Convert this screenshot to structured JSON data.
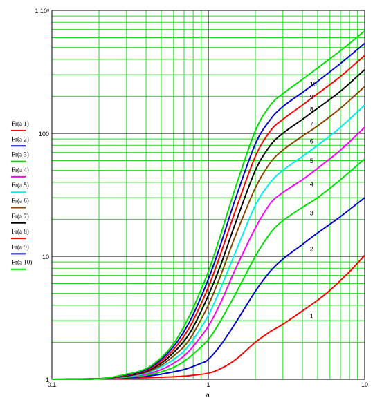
{
  "chart_data": {
    "type": "line",
    "title": "",
    "xlabel": "a",
    "ylabel": "",
    "xscale": "log",
    "yscale": "log",
    "xlim": [
      0.1,
      10
    ],
    "ylim": [
      1,
      1000
    ],
    "grid": true,
    "legend_placement": "left",
    "x_ticks": [
      {
        "value": 0.1,
        "label": "0.1"
      },
      {
        "value": 1,
        "label": "1"
      },
      {
        "value": 10,
        "label": "10"
      }
    ],
    "y_ticks": [
      {
        "value": 1,
        "label": "1"
      },
      {
        "value": 10,
        "label": "10"
      },
      {
        "value": 100,
        "label": "100"
      },
      {
        "value": 1000,
        "label": "1 10³"
      }
    ],
    "grid_colors": {
      "minor": "#22dd22",
      "major": "#000000"
    },
    "series": [
      {
        "name": "Fr(a  1)",
        "label": "1",
        "color": "#ff0000",
        "x": [
          0.1,
          0.2,
          0.3,
          0.5,
          0.7,
          0.8,
          1.0,
          1.2,
          1.5,
          2.0,
          2.5,
          3.0,
          4.0,
          5.0,
          6.0,
          8.0,
          10.0
        ],
        "y": [
          1.0,
          1.01,
          1.02,
          1.04,
          1.06,
          1.08,
          1.12,
          1.22,
          1.45,
          2.0,
          2.45,
          2.8,
          3.6,
          4.4,
          5.3,
          7.5,
          10.2
        ]
      },
      {
        "name": "Fr(a  2)",
        "label": "2",
        "color": "#0000cc",
        "x": [
          0.1,
          0.2,
          0.3,
          0.4,
          0.5,
          0.7,
          0.9,
          1.0,
          1.2,
          1.5,
          2.0,
          2.5,
          3.0,
          4.0,
          5.0,
          7.0,
          10.0
        ],
        "y": [
          1.0,
          1.01,
          1.03,
          1.06,
          1.1,
          1.2,
          1.35,
          1.45,
          1.9,
          2.9,
          5.2,
          7.6,
          9.5,
          12.5,
          15.5,
          21.0,
          30.0
        ]
      },
      {
        "name": "Fr(a  3)",
        "label": "3",
        "color": "#00dd00",
        "x": [
          0.1,
          0.2,
          0.3,
          0.4,
          0.5,
          0.6,
          0.7,
          0.8,
          1.0,
          1.2,
          1.5,
          2.0,
          2.5,
          3.0,
          4.0,
          5.0,
          7.0,
          10.0
        ],
        "y": [
          1.0,
          1.01,
          1.04,
          1.08,
          1.15,
          1.25,
          1.4,
          1.6,
          2.1,
          3.0,
          5.0,
          10.0,
          15.5,
          19.5,
          25.0,
          30.0,
          42.0,
          62.0
        ]
      },
      {
        "name": "Fr(a  4)",
        "label": "4",
        "color": "#ff00ff",
        "x": [
          0.1,
          0.2,
          0.3,
          0.4,
          0.5,
          0.6,
          0.7,
          0.8,
          1.0,
          1.2,
          1.5,
          2.0,
          2.5,
          3.0,
          4.0,
          5.0,
          7.0,
          10.0
        ],
        "y": [
          1.0,
          1.01,
          1.05,
          1.1,
          1.2,
          1.35,
          1.55,
          1.85,
          2.7,
          4.2,
          8.0,
          17.0,
          27.0,
          33.0,
          42.0,
          52.0,
          73.0,
          112.0
        ]
      },
      {
        "name": "Fr(a  5)",
        "label": "5",
        "color": "#00eeee",
        "x": [
          0.1,
          0.2,
          0.3,
          0.4,
          0.5,
          0.6,
          0.7,
          0.8,
          1.0,
          1.2,
          1.5,
          2.0,
          2.5,
          3.0,
          4.0,
          5.0,
          7.0,
          10.0
        ],
        "y": [
          1.0,
          1.01,
          1.05,
          1.12,
          1.26,
          1.45,
          1.7,
          2.1,
          3.3,
          5.5,
          11.0,
          26.0,
          40.0,
          50.0,
          65.0,
          80.0,
          112.0,
          170.0
        ]
      },
      {
        "name": "Fr(a  6)",
        "label": "6",
        "color": "#884400",
        "x": [
          0.1,
          0.2,
          0.3,
          0.4,
          0.5,
          0.6,
          0.7,
          0.8,
          1.0,
          1.2,
          1.5,
          2.0,
          2.5,
          3.0,
          4.0,
          5.0,
          7.0,
          10.0
        ],
        "y": [
          1.0,
          1.01,
          1.06,
          1.14,
          1.3,
          1.55,
          1.85,
          2.35,
          4.0,
          7.0,
          15.0,
          36.0,
          58.0,
          73.0,
          95.0,
          115.0,
          160.0,
          240.0
        ]
      },
      {
        "name": "Fr(a  7)",
        "label": "7",
        "color": "#000000",
        "x": [
          0.1,
          0.2,
          0.3,
          0.4,
          0.5,
          0.6,
          0.7,
          0.8,
          1.0,
          1.2,
          1.5,
          2.0,
          2.5,
          3.0,
          4.0,
          5.0,
          7.0,
          10.0
        ],
        "y": [
          1.0,
          1.01,
          1.07,
          1.16,
          1.35,
          1.65,
          2.05,
          2.65,
          4.8,
          8.5,
          19.0,
          50.0,
          80.0,
          100.0,
          130.0,
          160.0,
          220.0,
          330.0
        ]
      },
      {
        "name": "Fr(a  8)",
        "label": "8",
        "color": "#ff0000",
        "x": [
          0.1,
          0.2,
          0.3,
          0.4,
          0.5,
          0.6,
          0.7,
          0.8,
          1.0,
          1.2,
          1.5,
          2.0,
          2.5,
          3.0,
          4.0,
          5.0,
          7.0,
          10.0
        ],
        "y": [
          1.0,
          1.01,
          1.08,
          1.18,
          1.4,
          1.75,
          2.25,
          3.0,
          5.6,
          10.5,
          24.0,
          65.0,
          105.0,
          130.0,
          170.0,
          210.0,
          290.0,
          430.0
        ]
      },
      {
        "name": "Fr(a  9)",
        "label": "9",
        "color": "#0000cc",
        "x": [
          0.1,
          0.2,
          0.3,
          0.4,
          0.5,
          0.6,
          0.7,
          0.8,
          1.0,
          1.2,
          1.5,
          2.0,
          2.5,
          3.0,
          4.0,
          5.0,
          7.0,
          10.0
        ],
        "y": [
          1.0,
          1.01,
          1.09,
          1.2,
          1.45,
          1.85,
          2.45,
          3.35,
          6.5,
          12.5,
          30.0,
          82.0,
          130.0,
          165.0,
          215.0,
          265.0,
          370.0,
          540.0
        ]
      },
      {
        "name": "Fr(a  10)",
        "label": "10",
        "color": "#00dd00",
        "x": [
          0.1,
          0.2,
          0.3,
          0.4,
          0.5,
          0.6,
          0.7,
          0.8,
          1.0,
          1.2,
          1.5,
          2.0,
          2.5,
          3.0,
          4.0,
          5.0,
          7.0,
          10.0
        ],
        "y": [
          1.0,
          1.01,
          1.1,
          1.22,
          1.5,
          1.95,
          2.7,
          3.8,
          7.5,
          15.0,
          37.0,
          105.0,
          170.0,
          210.0,
          275.0,
          340.0,
          470.0,
          680.0
        ]
      }
    ]
  }
}
